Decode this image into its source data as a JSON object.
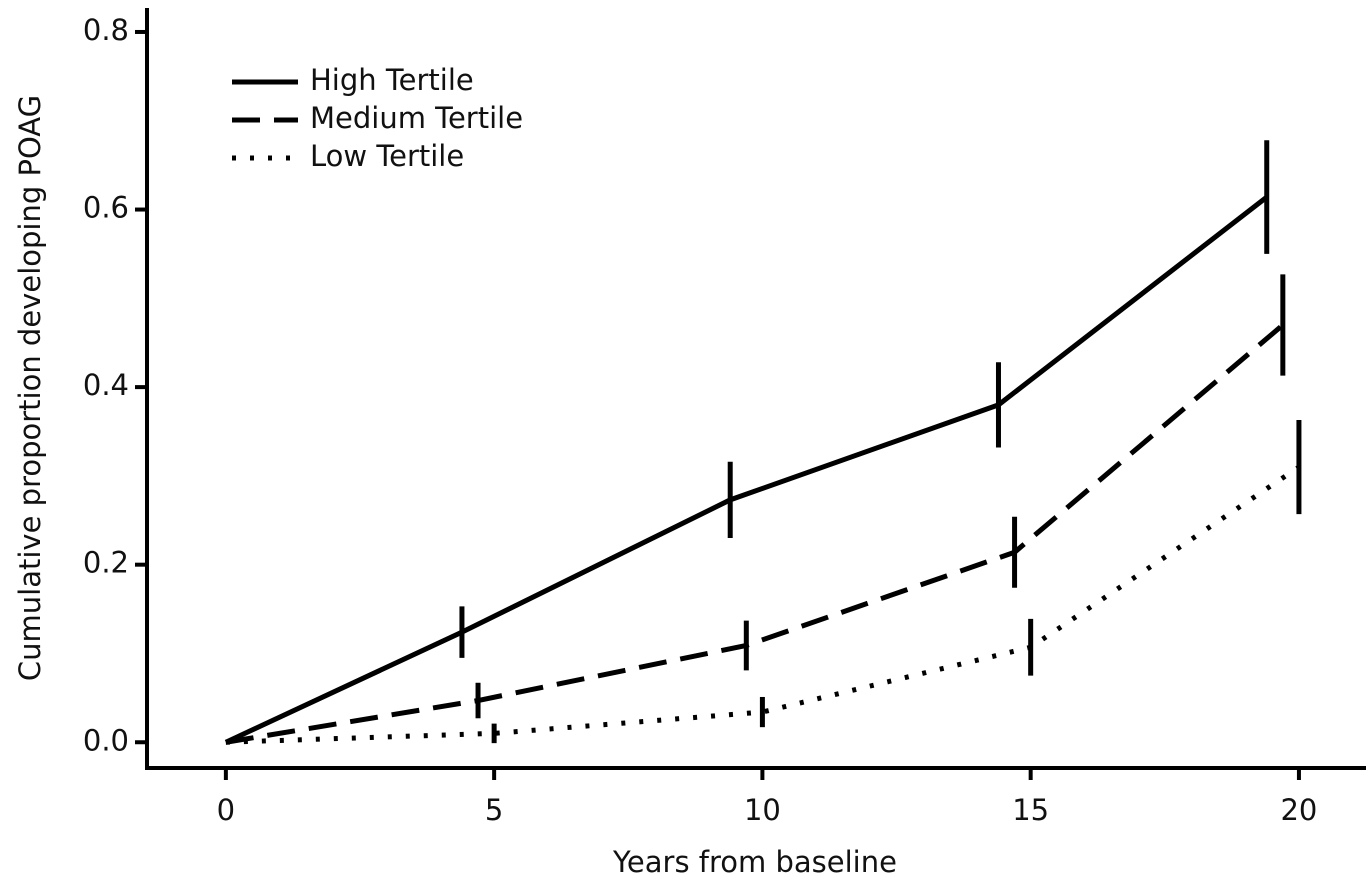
{
  "chart_data": {
    "type": "line",
    "xlabel": "Years from baseline",
    "ylabel": "Cumulative proportion developing POAG",
    "xlim": [
      -1.47,
      21.25
    ],
    "ylim": [
      -0.029,
      0.827
    ],
    "xticks": [
      0,
      5,
      10,
      15,
      20
    ],
    "yticks": [
      {
        "value": 0,
        "label": "0.0"
      },
      0.2,
      0.4,
      0.6,
      0.8
    ],
    "legend": "upper left",
    "series": [
      {
        "name": "High Tertile",
        "color": "#000000",
        "linestyle": "solid",
        "x": [
          0,
          4.4,
          9.4,
          14.4,
          19.4
        ],
        "values": [
          0,
          0.124,
          0.273,
          0.38,
          0.614
        ],
        "errors": [
          0,
          0.029,
          0.043,
          0.048,
          0.064
        ]
      },
      {
        "name": "Medium Tertile",
        "color": "#000000",
        "linestyle": "dashed",
        "x": [
          0,
          4.7,
          9.7,
          14.7,
          19.7
        ],
        "values": [
          0,
          0.047,
          0.109,
          0.214,
          0.47
        ],
        "errors": [
          0,
          0.02,
          0.028,
          0.04,
          0.057
        ]
      },
      {
        "name": "Low Tertile",
        "color": "#000000",
        "linestyle": "dotted",
        "x": [
          0,
          5,
          10,
          15,
          20
        ],
        "values": [
          0,
          0.01,
          0.034,
          0.107,
          0.31
        ],
        "errors": [
          0,
          0.011,
          0.017,
          0.032,
          0.053
        ]
      }
    ]
  }
}
